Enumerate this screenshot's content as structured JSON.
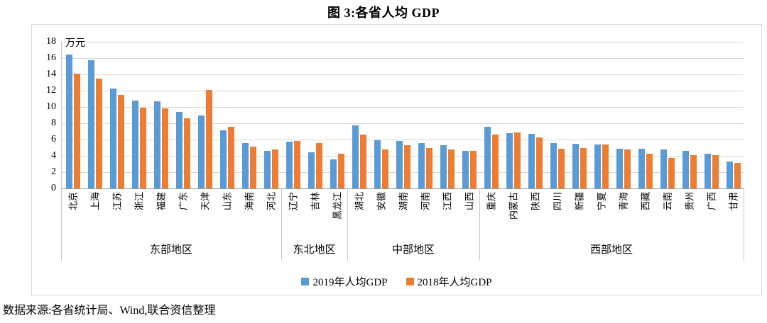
{
  "figure_title": "图 3:各省人均 GDP",
  "source_note": "数据来源:各省统计局、Wind,联合资信整理",
  "chart_data": {
    "type": "bar",
    "title": "图 3:各省人均 GDP",
    "xlabel": "",
    "ylabel": "万元",
    "ylim": [
      0,
      18
    ],
    "ytick_step": 2,
    "grid": true,
    "legend_position": "bottom-center",
    "categories": [
      "北京",
      "上海",
      "江苏",
      "浙江",
      "福建",
      "广东",
      "天津",
      "山东",
      "海南",
      "河北",
      "辽宁",
      "吉林",
      "黑龙江",
      "湖北",
      "安徽",
      "湖南",
      "河南",
      "江西",
      "山西",
      "重庆",
      "内蒙古",
      "陕西",
      "四川",
      "新疆",
      "宁夏",
      "青海",
      "西藏",
      "云南",
      "贵州",
      "广西",
      "甘肃"
    ],
    "groups": [
      {
        "label": "东部地区",
        "categories": [
          "北京",
          "上海",
          "江苏",
          "浙江",
          "福建",
          "广东",
          "天津",
          "山东",
          "海南",
          "河北"
        ]
      },
      {
        "label": "东北地区",
        "categories": [
          "辽宁",
          "吉林",
          "黑龙江"
        ]
      },
      {
        "label": "中部地区",
        "categories": [
          "湖北",
          "安徽",
          "湖南",
          "河南",
          "江西",
          "山西"
        ]
      },
      {
        "label": "西部地区",
        "categories": [
          "重庆",
          "内蒙古",
          "陕西",
          "四川",
          "新疆",
          "宁夏",
          "青海",
          "西藏",
          "云南",
          "贵州",
          "广西",
          "甘肃"
        ]
      }
    ],
    "series": [
      {
        "name": "2019年人均GDP",
        "color": "#5B9BD5",
        "values": [
          16.4,
          15.7,
          12.3,
          10.8,
          10.7,
          9.4,
          9.0,
          7.1,
          5.6,
          4.6,
          5.7,
          4.4,
          3.6,
          7.7,
          5.9,
          5.8,
          5.6,
          5.3,
          4.6,
          7.6,
          6.8,
          6.7,
          5.6,
          5.5,
          5.4,
          4.9,
          4.9,
          4.8,
          4.6,
          4.3,
          3.3
        ]
      },
      {
        "name": "2018年人均GDP",
        "color": "#ED7D31",
        "values": [
          14.1,
          13.5,
          11.5,
          9.9,
          9.8,
          8.6,
          12.1,
          7.6,
          5.1,
          4.8,
          5.8,
          5.6,
          4.3,
          6.6,
          4.8,
          5.3,
          5.0,
          4.8,
          4.6,
          6.6,
          6.9,
          6.3,
          4.9,
          5.0,
          5.4,
          4.8,
          4.3,
          3.7,
          4.1,
          4.1,
          3.1
        ]
      }
    ]
  }
}
